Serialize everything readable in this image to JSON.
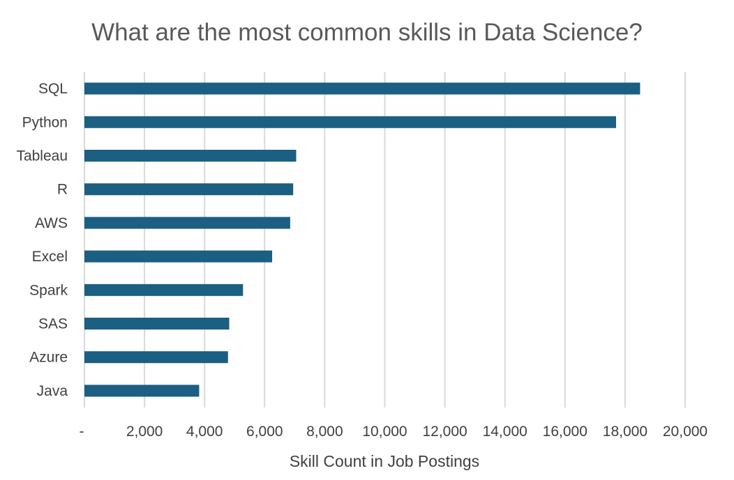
{
  "chart_data": {
    "type": "bar",
    "orientation": "horizontal",
    "title": "What are the most common skills in Data Science?",
    "xlabel": "Skill Count in Job Postings",
    "ylabel": "",
    "categories": [
      "SQL",
      "Python",
      "Tableau",
      "R",
      "AWS",
      "Excel",
      "Spark",
      "SAS",
      "Azure",
      "Java"
    ],
    "values": [
      18500,
      17700,
      7050,
      6950,
      6850,
      6250,
      5280,
      4820,
      4780,
      3820
    ],
    "xlim": [
      0,
      20000
    ],
    "x_ticks": [
      0,
      2000,
      4000,
      6000,
      8000,
      10000,
      12000,
      14000,
      16000,
      18000,
      20000
    ],
    "x_tick_labels": [
      "-",
      "2,000",
      "4,000",
      "6,000",
      "8,000",
      "10,000",
      "12,000",
      "14,000",
      "16,000",
      "18,000",
      "20,000"
    ],
    "grid": true,
    "legend": "none",
    "bar_color": "#1b5f82"
  }
}
